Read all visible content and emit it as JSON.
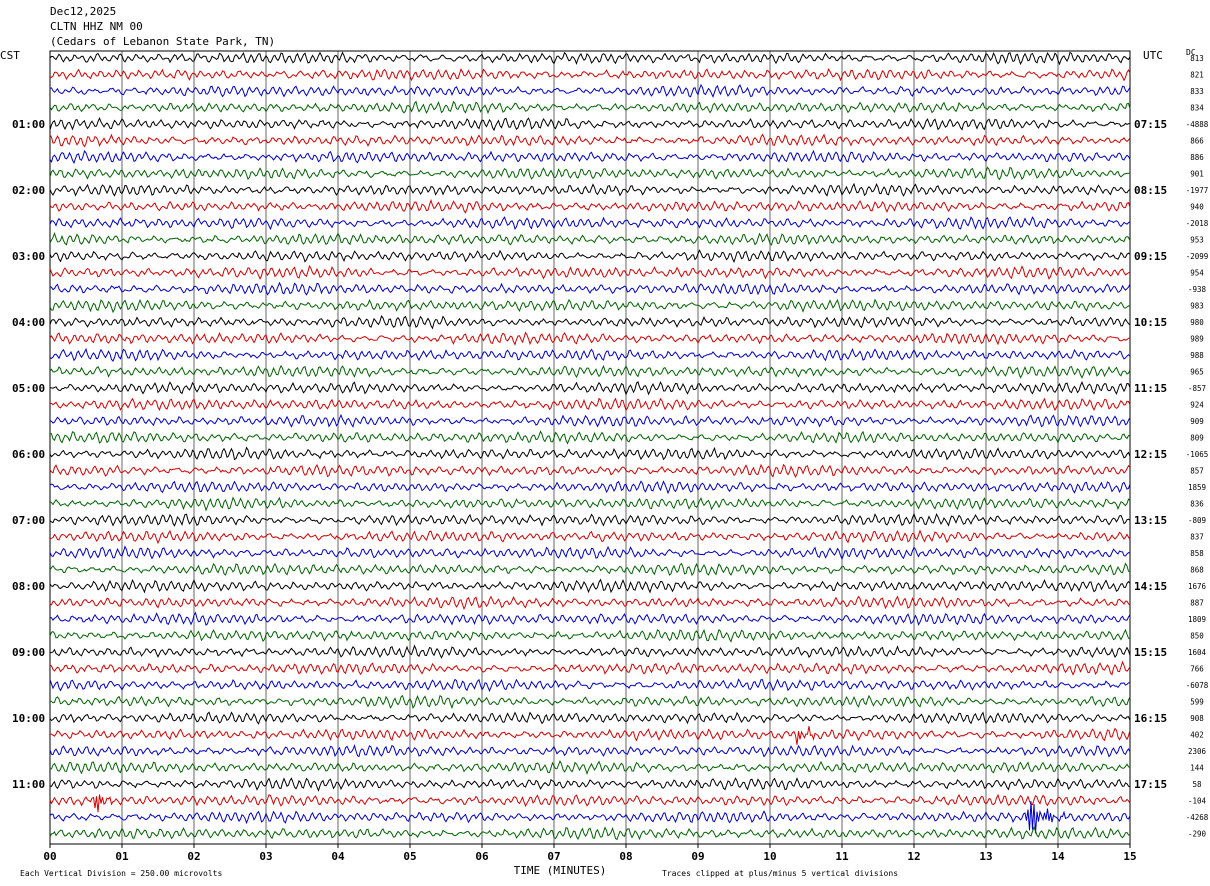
{
  "header": {
    "date": "Dec12,2025",
    "station": "CLTN HHZ NM 00",
    "location": "(Cedars of Lebanon State Park, TN)"
  },
  "left_axis_label": "CST",
  "right_axis_label": "UTC",
  "dc_label": "DC",
  "footer": {
    "scale_note": "Each Vertical Division =  250.00 microvolts",
    "clip_note": "Traces clipped at plus/minus 5 vertical divisions"
  },
  "colors": {
    "trace_cycle": [
      "#000000",
      "#d40000",
      "#0000c8",
      "#006400"
    ],
    "grid": "#000000"
  },
  "chart_data": {
    "type": "line",
    "title": "",
    "xlabel": "TIME (MINUTES)",
    "ylabel": "",
    "xlim": [
      0,
      15
    ],
    "x_ticks": [
      "00",
      "01",
      "02",
      "03",
      "04",
      "05",
      "06",
      "07",
      "08",
      "09",
      "10",
      "11",
      "12",
      "13",
      "14",
      "15"
    ],
    "rows_per_hour": 4,
    "left_hour_labels": [
      "01:00",
      "02:00",
      "03:00",
      "04:00",
      "05:00",
      "06:00",
      "07:00",
      "08:00",
      "09:00",
      "10:00",
      "11:00"
    ],
    "right_hour_labels": [
      "07:15",
      "08:15",
      "09:15",
      "10:15",
      "11:15",
      "12:15",
      "13:15",
      "14:15",
      "15:15",
      "16:15",
      "17:15"
    ],
    "dc_offsets": [
      "813",
      "821",
      "833",
      "834",
      "-4888",
      "866",
      "886",
      "901",
      "-1977",
      "940",
      "-2018",
      "953",
      "-2099",
      "954",
      "-938",
      "983",
      "980",
      "989",
      "988",
      "965",
      "-857",
      "924",
      "909",
      "809",
      "-1065",
      "857",
      "1859",
      "836",
      "-809",
      "837",
      "858",
      "868",
      "1676",
      "887",
      "1809",
      "850",
      "1604",
      "766",
      "-6078",
      "599",
      "908",
      "402",
      "2306",
      "144",
      "58",
      "-104",
      "-4268",
      "-290"
    ],
    "events": [
      {
        "row": 41,
        "minute": 10.4,
        "amplitude": "large"
      },
      {
        "row": 45,
        "minute": 0.65,
        "amplitude": "large"
      },
      {
        "row": 46,
        "minute": 13.55,
        "amplitude": "very-large"
      }
    ]
  }
}
